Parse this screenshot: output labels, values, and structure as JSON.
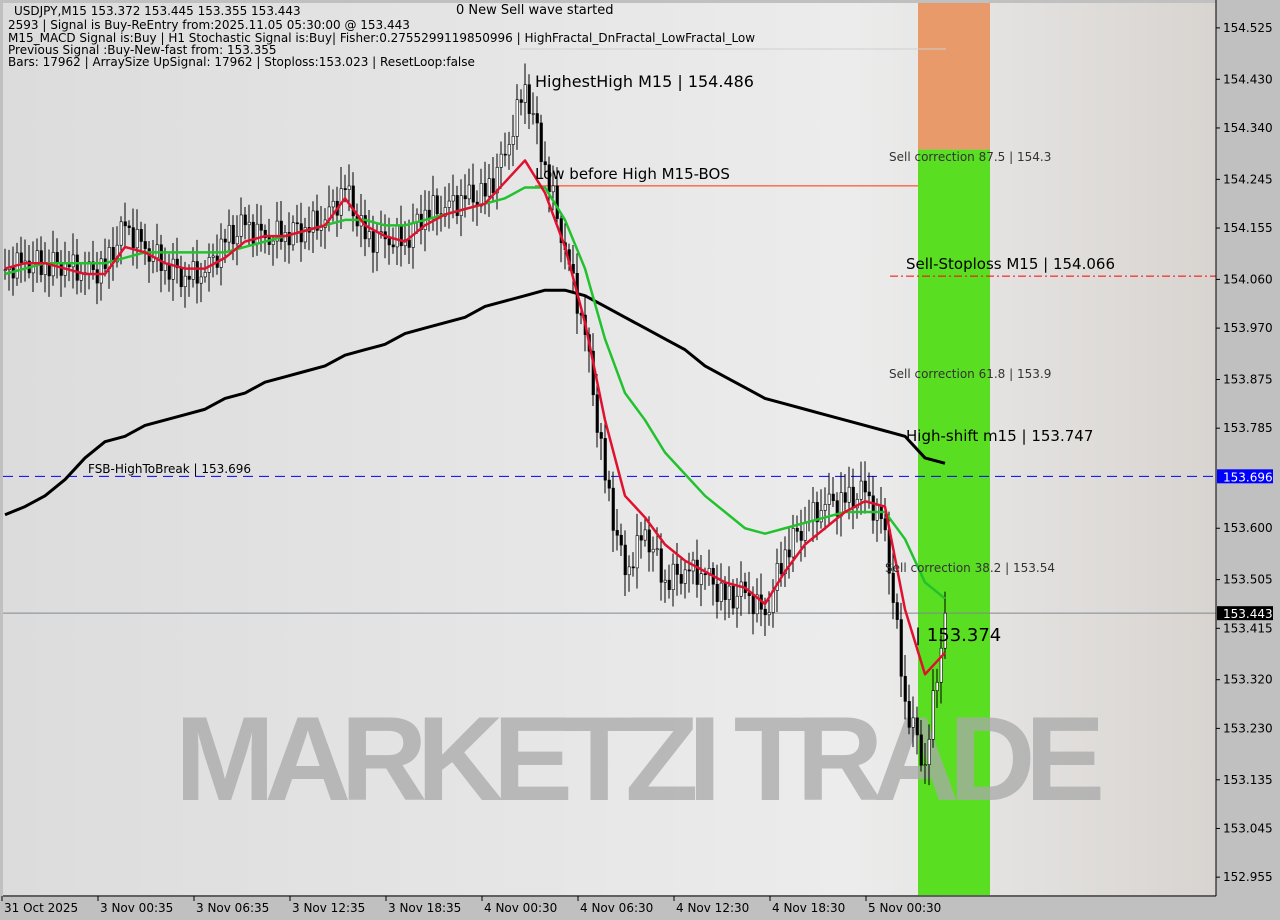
{
  "header": {
    "symbol_line": "USDJPY,M15  153.372 153.445 153.355 153.443",
    "signal_line": "2593 | Signal is Buy-ReEntry from:2025.11.05 05:30:00 @ 153.443",
    "macd_line": "M15_MACD Signal is:Buy | H1 Stochastic Signal is:Buy| Fisher:0.2755299119850996 | HighFractal_DnFractal_LowFractal_Low",
    "previous_line": "Previous Signal :Buy-New-fast from: 153.355",
    "bars_line": "Bars: 17962 | ArraySize UpSignal: 17962 | Stoploss:153.023 | ResetLoop:false"
  },
  "annotations": {
    "new_wave": "0 New Sell wave started",
    "highest_high": "HighestHigh  M15 | 154.486",
    "low_before_high": "Low before High   M15-BOS",
    "sell_corr_875": "Sell correction 87.5 | 154.3",
    "sell_stoploss": "Sell-Stoploss M15 | 154.066",
    "sell_corr_618": "Sell correction 61.8 | 153.9",
    "high_shift": "High-shift m15 | 153.747",
    "fsb": "FSB-HighToBreak | 153.696",
    "sell_corr_382": "Sell correction 38.2 | 153.54",
    "current_label": "| 153.374",
    "watermark": "MARKETZI TRADE"
  },
  "chart_data": {
    "type": "candlestick",
    "symbol": "USDJPY",
    "timeframe": "M15",
    "ylim": [
      152.922,
      154.571
    ],
    "y_ticks": [
      154.525,
      154.43,
      154.34,
      154.245,
      154.155,
      154.06,
      153.97,
      153.875,
      153.785,
      153.6,
      153.505,
      153.415,
      153.32,
      153.23,
      153.135,
      153.045,
      152.955
    ],
    "x_tick_labels": [
      "31 Oct 2025",
      "3 Nov 00:35",
      "3 Nov 06:35",
      "3 Nov 12:35",
      "3 Nov 18:35",
      "4 Nov 00:30",
      "4 Nov 06:30",
      "4 Nov 12:30",
      "4 Nov 18:30",
      "5 Nov 00:30"
    ],
    "times": [
      "31 Oct 18:45",
      "31 Oct 20:00",
      "31 Oct 21:15",
      "31 Oct 22:30",
      "31 Oct 23:45",
      "3 Nov 01:00",
      "3 Nov 02:15",
      "3 Nov 03:30",
      "3 Nov 04:45",
      "3 Nov 06:00",
      "3 Nov 07:15",
      "3 Nov 08:30",
      "3 Nov 09:45",
      "3 Nov 11:00",
      "3 Nov 12:15",
      "3 Nov 13:30",
      "3 Nov 14:45",
      "3 Nov 16:00",
      "3 Nov 17:15",
      "3 Nov 18:30",
      "3 Nov 19:45",
      "3 Nov 21:00",
      "3 Nov 22:15",
      "3 Nov 23:30",
      "4 Nov 00:45",
      "4 Nov 02:00",
      "4 Nov 03:15",
      "4 Nov 04:30",
      "4 Nov 05:45",
      "4 Nov 07:00",
      "4 Nov 08:15",
      "4 Nov 09:30",
      "4 Nov 10:45",
      "4 Nov 12:00",
      "4 Nov 13:15",
      "4 Nov 14:30",
      "4 Nov 15:45",
      "4 Nov 17:00",
      "4 Nov 18:15",
      "4 Nov 19:30",
      "4 Nov 20:45",
      "4 Nov 22:00",
      "4 Nov 23:15",
      "5 Nov 00:30",
      "5 Nov 01:45",
      "5 Nov 03:00",
      "5 Nov 04:15",
      "5 Nov 05:30"
    ],
    "close": [
      154.078,
      154.094,
      154.089,
      154.09,
      154.071,
      154.08,
      154.159,
      154.117,
      154.089,
      154.066,
      154.073,
      154.129,
      154.161,
      154.137,
      154.147,
      154.156,
      154.17,
      154.226,
      154.135,
      154.135,
      154.133,
      154.188,
      154.193,
      154.209,
      154.214,
      154.29,
      154.42,
      154.272,
      154.115,
      153.958,
      153.689,
      153.514,
      153.597,
      153.504,
      153.523,
      153.514,
      153.468,
      153.481,
      153.44,
      153.56,
      153.611,
      153.644,
      153.648,
      153.667,
      153.597,
      153.28,
      153.163,
      153.443
    ],
    "series": [
      {
        "color": "#000000",
        "values": [
          153.625,
          153.64,
          153.66,
          153.69,
          153.73,
          153.76,
          153.77,
          153.79,
          153.8,
          153.81,
          153.82,
          153.84,
          153.85,
          153.87,
          153.88,
          153.89,
          153.9,
          153.92,
          153.93,
          153.94,
          153.96,
          153.97,
          153.98,
          153.99,
          154.01,
          154.02,
          154.03,
          154.04,
          154.04,
          154.03,
          154.01,
          153.99,
          153.97,
          153.95,
          153.93,
          153.9,
          153.88,
          153.86,
          153.84,
          153.83,
          153.82,
          153.81,
          153.8,
          153.79,
          153.78,
          153.77,
          153.73,
          153.72
        ]
      },
      {
        "color": "#22c22e",
        "values": [
          154.07,
          154.08,
          154.09,
          154.09,
          154.09,
          154.09,
          154.1,
          154.11,
          154.11,
          154.11,
          154.11,
          154.11,
          154.12,
          154.13,
          154.14,
          154.15,
          154.16,
          154.17,
          154.17,
          154.16,
          154.16,
          154.17,
          154.18,
          154.19,
          154.2,
          154.21,
          154.23,
          154.23,
          154.17,
          154.08,
          153.95,
          153.85,
          153.8,
          153.74,
          153.7,
          153.66,
          153.63,
          153.6,
          153.59,
          153.6,
          153.61,
          153.62,
          153.63,
          153.63,
          153.63,
          153.58,
          153.5,
          153.47
        ]
      },
      {
        "color": "#e0102f",
        "values": [
          154.08,
          154.09,
          154.09,
          154.08,
          154.07,
          154.07,
          154.12,
          154.11,
          154.09,
          154.08,
          154.08,
          154.1,
          154.13,
          154.14,
          154.14,
          154.15,
          154.16,
          154.21,
          154.16,
          154.14,
          154.13,
          154.16,
          154.18,
          154.19,
          154.2,
          154.24,
          154.28,
          154.22,
          154.12,
          153.98,
          153.8,
          153.66,
          153.62,
          153.57,
          153.54,
          153.52,
          153.5,
          153.49,
          153.46,
          153.52,
          153.57,
          153.6,
          153.63,
          153.65,
          153.64,
          153.45,
          153.33,
          153.37
        ]
      }
    ],
    "levels": {
      "fsb_high_to_break": 153.696,
      "current_price": 153.443,
      "low_before_high": 154.233,
      "sell_stoploss": 154.066,
      "highest_high": 154.486,
      "sell_correction_875": 154.3
    },
    "zones": {
      "green_color": "#5ade22",
      "orange_color": "#e89a6a"
    },
    "current_price_label": "153.443",
    "fsb_label": "153.696"
  }
}
